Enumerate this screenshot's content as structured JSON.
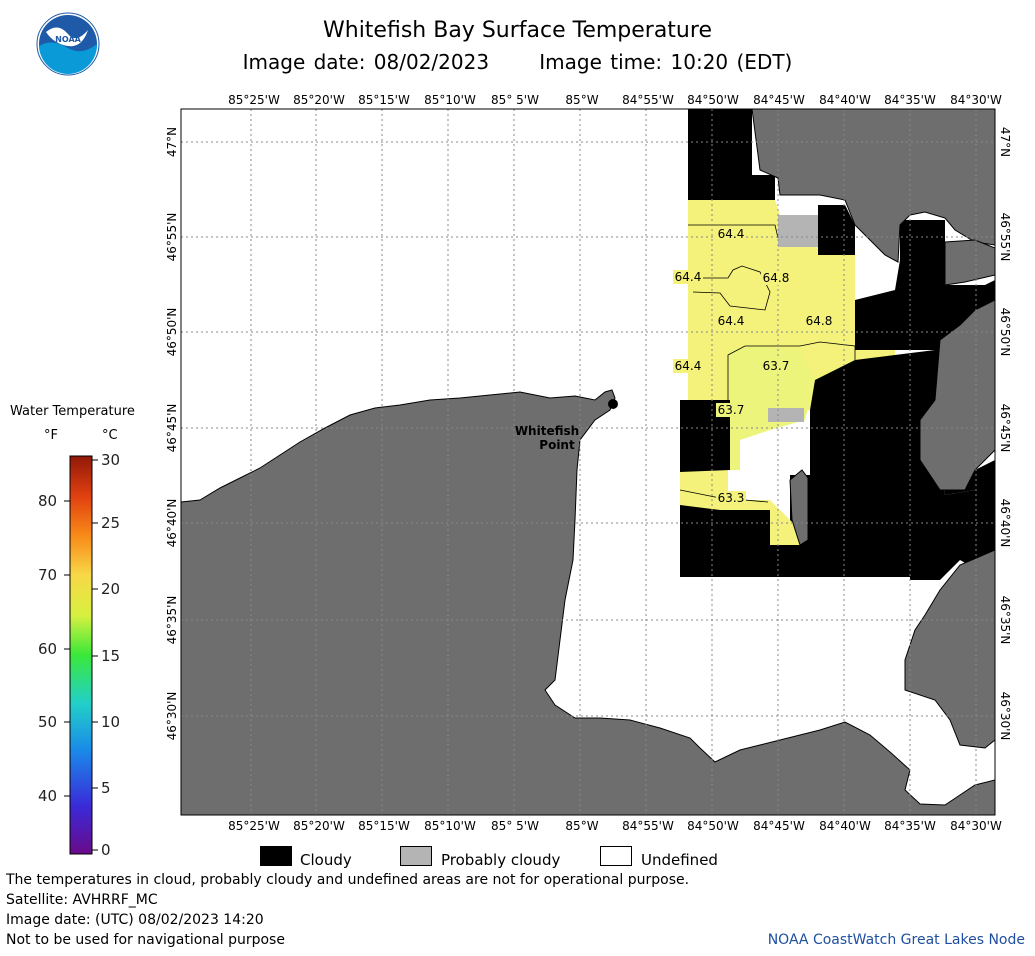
{
  "header": {
    "title": "Whitefish Bay Surface Temperature",
    "image_date_text": "Image date: 08/02/2023",
    "image_time_text": "Image time: 10:20 (EDT)",
    "logo_text": "NOAA"
  },
  "map": {
    "lon_labels": [
      "85°25'W",
      "85°20'W",
      "85°15'W",
      "85°10'W",
      "85° 5'W",
      "85°W",
      "84°55'W",
      "84°50'W",
      "84°45'W",
      "84°40'W",
      "84°35'W",
      "84°30'W"
    ],
    "lat_labels": [
      "47°N",
      "46°55'N",
      "46°50'N",
      "46°45'N",
      "46°40'N",
      "46°35'N",
      "46°30'N"
    ],
    "place_name_1": "Whitefish",
    "place_name_2": "Point",
    "isotherm_labels": [
      {
        "text": "64.4",
        "key": "a"
      },
      {
        "text": "64.4",
        "key": "b"
      },
      {
        "text": "64.8",
        "key": "c"
      },
      {
        "text": "64.4",
        "key": "d"
      },
      {
        "text": "64.8",
        "key": "e"
      },
      {
        "text": "64.4",
        "key": "f"
      },
      {
        "text": "63.7",
        "key": "g"
      },
      {
        "text": "63.7",
        "key": "h"
      },
      {
        "text": "63.3",
        "key": "i"
      }
    ],
    "colors": {
      "land": "#6e6e6e",
      "cloud": "#000000",
      "probably_cloudy": "#b4b4b4",
      "undefined": "#ffffff",
      "water_warm": "#f4f27a",
      "water_cool": "#e8f57a"
    }
  },
  "legend": {
    "title": "Water Temperature",
    "unit_f": "°F",
    "unit_c": "°C",
    "f_ticks": [
      "80",
      "70",
      "60",
      "50",
      "40"
    ],
    "c_ticks": [
      "30",
      "25",
      "20",
      "15",
      "10",
      "5",
      "0"
    ],
    "colormap_min_f": 32,
    "colormap_max_f": 86
  },
  "key": {
    "cloudy": "Cloudy",
    "probably_cloudy": "Probably cloudy",
    "undefined": "Undefined"
  },
  "footer": {
    "line1": "The temperatures in cloud, probably cloudy and undefined areas are not for operational purpose.",
    "line2": "Satellite: AVHRRF_MC",
    "line3": "Image date: (UTC) 08/02/2023  14:20",
    "line4": "Not to be used for navigational purpose",
    "credit": "NOAA CoastWatch Great Lakes Node"
  }
}
